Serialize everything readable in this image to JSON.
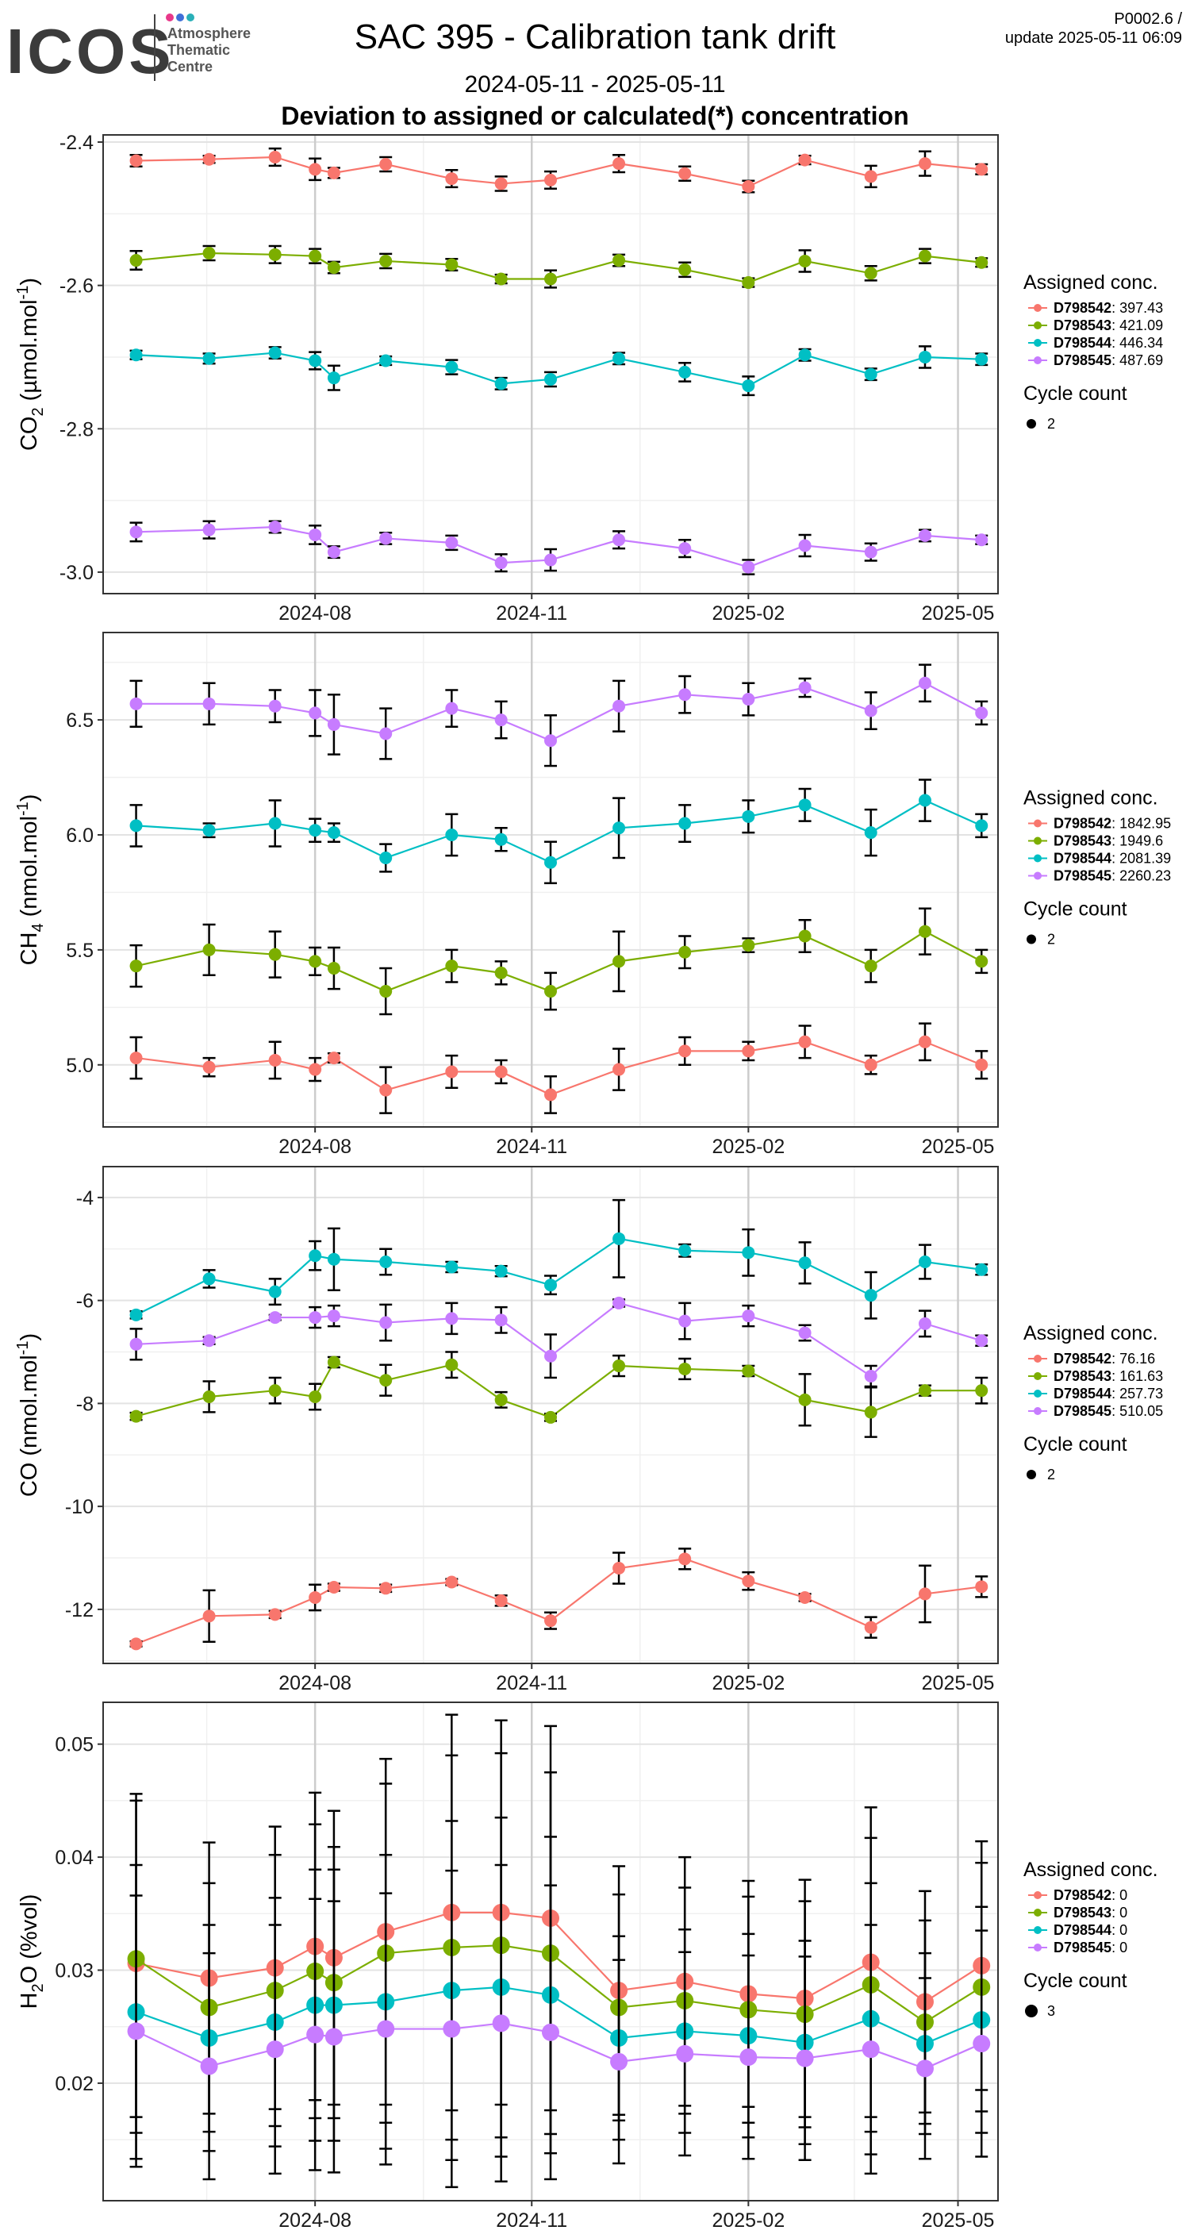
{
  "header": {
    "logo_text": "ICOS",
    "logo_sub": [
      "Atmosphere",
      "Thematic",
      "Centre"
    ],
    "title": "SAC 395 - Calibration tank drift",
    "period": "2024-05-11 - 2025-05-11",
    "subtitle": "Deviation to assigned or calculated(*) concentration",
    "meta_line1": "P0002.6 /",
    "meta_line2": "update  2025-05-11 06:09"
  },
  "colors": {
    "D798542": "#F8766D",
    "D798543": "#7CAE00",
    "D798544": "#00BFC4",
    "D798545": "#C77CFF"
  },
  "chart_data": [
    {
      "type": "line",
      "ylabel": "CO2 (µmol.mol-1)",
      "x_ticks": [
        "2024-08",
        "2024-11",
        "2025-02",
        "2025-05"
      ],
      "yticks": [
        -2.4,
        -2.6,
        -2.8,
        -3.0
      ],
      "ylim": [
        -3.03,
        -2.39
      ],
      "x": [
        "2024-05-17",
        "2024-06-17",
        "2024-07-15",
        "2024-08-01",
        "2024-08-09",
        "2024-08-31",
        "2024-09-28",
        "2024-10-19",
        "2024-11-09",
        "2024-12-08",
        "2025-01-05",
        "2025-02-01",
        "2025-02-25",
        "2025-03-25",
        "2025-04-17",
        "2025-05-11"
      ],
      "series": [
        {
          "name": "D798542",
          "assigned": "397.43",
          "values": [
            -2.426,
            -2.424,
            -2.421,
            -2.438,
            -2.443,
            -2.431,
            -2.451,
            -2.458,
            -2.453,
            -2.43,
            -2.444,
            -2.462,
            -2.425,
            -2.448,
            -2.43,
            -2.438
          ],
          "err": [
            0.008,
            0.005,
            0.012,
            0.015,
            0.007,
            0.01,
            0.012,
            0.01,
            0.012,
            0.012,
            0.01,
            0.008,
            0.006,
            0.015,
            0.017,
            0.007
          ]
        },
        {
          "name": "D798543",
          "assigned": "421.09",
          "values": [
            -2.565,
            -2.555,
            -2.557,
            -2.559,
            -2.575,
            -2.566,
            -2.571,
            -2.591,
            -2.591,
            -2.565,
            -2.578,
            -2.596,
            -2.566,
            -2.583,
            -2.559,
            -2.568
          ],
          "err": [
            0.013,
            0.01,
            0.012,
            0.01,
            0.008,
            0.01,
            0.008,
            0.006,
            0.012,
            0.008,
            0.01,
            0.006,
            0.015,
            0.01,
            0.01,
            0.006
          ]
        },
        {
          "name": "D798544",
          "assigned": "446.34",
          "values": [
            -2.697,
            -2.702,
            -2.694,
            -2.705,
            -2.729,
            -2.705,
            -2.714,
            -2.737,
            -2.731,
            -2.702,
            -2.721,
            -2.74,
            -2.697,
            -2.724,
            -2.7,
            -2.703
          ],
          "err": [
            0.006,
            0.007,
            0.008,
            0.012,
            0.017,
            0.006,
            0.01,
            0.008,
            0.01,
            0.008,
            0.013,
            0.013,
            0.008,
            0.008,
            0.015,
            0.008
          ]
        },
        {
          "name": "D798545",
          "assigned": "487.69",
          "values": [
            -2.944,
            -2.941,
            -2.937,
            -2.948,
            -2.972,
            -2.953,
            -2.959,
            -2.987,
            -2.983,
            -2.955,
            -2.967,
            -2.993,
            -2.963,
            -2.972,
            -2.949,
            -2.955
          ],
          "err": [
            0.013,
            0.012,
            0.008,
            0.013,
            0.008,
            0.008,
            0.01,
            0.012,
            0.015,
            0.012,
            0.012,
            0.01,
            0.015,
            0.012,
            0.008,
            0.006
          ]
        }
      ],
      "legend": {
        "title": "Assigned conc.",
        "size_title": "Cycle count",
        "size_value": "2"
      }
    },
    {
      "type": "line",
      "ylabel": "CH4 (nmol.mol-1)",
      "x_ticks": [
        "2024-08",
        "2024-11",
        "2025-02",
        "2025-05"
      ],
      "yticks": [
        6.5,
        6.0,
        5.5,
        5.0
      ],
      "ylim": [
        4.73,
        6.88
      ],
      "x": [
        "2024-05-17",
        "2024-06-17",
        "2024-07-15",
        "2024-08-01",
        "2024-08-09",
        "2024-08-31",
        "2024-09-28",
        "2024-10-19",
        "2024-11-09",
        "2024-12-08",
        "2025-01-05",
        "2025-02-01",
        "2025-02-25",
        "2025-03-25",
        "2025-04-17",
        "2025-05-11"
      ],
      "series": [
        {
          "name": "D798542",
          "assigned": "1842.95",
          "values": [
            5.03,
            4.99,
            5.02,
            4.98,
            5.03,
            4.89,
            4.97,
            4.97,
            4.87,
            4.98,
            5.06,
            5.06,
            5.1,
            5.0,
            5.1,
            5.0
          ],
          "err": [
            0.09,
            0.04,
            0.08,
            0.05,
            0.02,
            0.1,
            0.07,
            0.05,
            0.08,
            0.09,
            0.06,
            0.04,
            0.07,
            0.04,
            0.08,
            0.06
          ]
        },
        {
          "name": "D798543",
          "assigned": "1949.6",
          "values": [
            5.43,
            5.5,
            5.48,
            5.45,
            5.42,
            5.32,
            5.43,
            5.4,
            5.32,
            5.45,
            5.49,
            5.52,
            5.56,
            5.43,
            5.58,
            5.45
          ],
          "err": [
            0.09,
            0.11,
            0.1,
            0.06,
            0.09,
            0.1,
            0.07,
            0.05,
            0.08,
            0.13,
            0.07,
            0.03,
            0.07,
            0.07,
            0.1,
            0.05
          ]
        },
        {
          "name": "D798544",
          "assigned": "2081.39",
          "values": [
            6.04,
            6.02,
            6.05,
            6.02,
            6.01,
            5.9,
            6.0,
            5.98,
            5.88,
            6.03,
            6.05,
            6.08,
            6.13,
            6.01,
            6.15,
            6.04
          ],
          "err": [
            0.09,
            0.03,
            0.1,
            0.05,
            0.04,
            0.06,
            0.09,
            0.05,
            0.09,
            0.13,
            0.08,
            0.07,
            0.07,
            0.1,
            0.09,
            0.05
          ]
        },
        {
          "name": "D798545",
          "assigned": "2260.23",
          "values": [
            6.57,
            6.57,
            6.56,
            6.53,
            6.48,
            6.44,
            6.55,
            6.5,
            6.41,
            6.56,
            6.61,
            6.59,
            6.64,
            6.54,
            6.66,
            6.53
          ],
          "err": [
            0.1,
            0.09,
            0.07,
            0.1,
            0.13,
            0.11,
            0.08,
            0.08,
            0.11,
            0.11,
            0.08,
            0.07,
            0.04,
            0.08,
            0.08,
            0.05
          ]
        }
      ],
      "legend": {
        "title": "Assigned conc.",
        "size_title": "Cycle count",
        "size_value": "2"
      }
    },
    {
      "type": "line",
      "ylabel": "CO (nmol.mol-1)",
      "x_ticks": [
        "2024-08",
        "2024-11",
        "2025-02",
        "2025-05"
      ],
      "yticks": [
        -4,
        -6,
        -8,
        -10,
        -12
      ],
      "ylim": [
        -13.05,
        -3.4
      ],
      "x": [
        "2024-05-17",
        "2024-06-17",
        "2024-07-15",
        "2024-08-01",
        "2024-08-09",
        "2024-08-31",
        "2024-09-28",
        "2024-10-19",
        "2024-11-09",
        "2024-12-08",
        "2025-01-05",
        "2025-02-01",
        "2025-02-25",
        "2025-03-25",
        "2025-04-17",
        "2025-05-11"
      ],
      "series": [
        {
          "name": "D798542",
          "assigned": "76.16",
          "values": [
            -12.67,
            -12.13,
            -12.1,
            -11.77,
            -11.57,
            -11.59,
            -11.47,
            -11.83,
            -12.22,
            -11.2,
            -11.02,
            -11.45,
            -11.77,
            -12.35,
            -11.7,
            -11.56
          ],
          "err": [
            0.05,
            0.5,
            0.07,
            0.25,
            0.07,
            0.07,
            0.06,
            0.1,
            0.16,
            0.3,
            0.2,
            0.17,
            0.07,
            0.2,
            0.55,
            0.2
          ]
        },
        {
          "name": "D798543",
          "assigned": "161.63",
          "values": [
            -8.25,
            -7.87,
            -7.75,
            -7.87,
            -7.2,
            -7.55,
            -7.25,
            -7.93,
            -8.27,
            -7.27,
            -7.33,
            -7.37,
            -7.93,
            -8.17,
            -7.75,
            -7.75
          ],
          "err": [
            0.07,
            0.3,
            0.25,
            0.25,
            0.1,
            0.3,
            0.25,
            0.15,
            0.07,
            0.2,
            0.2,
            0.1,
            0.5,
            0.48,
            0.1,
            0.25
          ]
        },
        {
          "name": "D798544",
          "assigned": "257.73",
          "values": [
            -6.28,
            -5.58,
            -5.83,
            -5.13,
            -5.2,
            -5.25,
            -5.35,
            -5.43,
            -5.7,
            -4.8,
            -5.03,
            -5.07,
            -5.27,
            -5.9,
            -5.25,
            -5.4
          ],
          "err": [
            0.07,
            0.17,
            0.25,
            0.28,
            0.6,
            0.25,
            0.1,
            0.1,
            0.18,
            0.75,
            0.12,
            0.45,
            0.4,
            0.45,
            0.33,
            0.1
          ]
        },
        {
          "name": "D798545",
          "assigned": "510.05",
          "values": [
            -6.85,
            -6.78,
            -6.33,
            -6.33,
            -6.3,
            -6.43,
            -6.35,
            -6.38,
            -7.08,
            -6.05,
            -6.4,
            -6.3,
            -6.63,
            -7.47,
            -6.45,
            -6.78
          ],
          "err": [
            0.3,
            0.07,
            0.05,
            0.2,
            0.2,
            0.35,
            0.3,
            0.25,
            0.42,
            0.07,
            0.35,
            0.2,
            0.15,
            0.2,
            0.25,
            0.1
          ]
        }
      ],
      "legend": {
        "title": "Assigned conc.",
        "size_title": "Cycle count",
        "size_value": "2"
      }
    },
    {
      "type": "line",
      "ylabel": "H2O (%vol)",
      "x_ticks": [
        "2024-08",
        "2024-11",
        "2025-02",
        "2025-05"
      ],
      "yticks": [
        0.05,
        0.04,
        0.03,
        0.02
      ],
      "ylim": [
        0.0096,
        0.0537
      ],
      "x": [
        "2024-05-17",
        "2024-06-17",
        "2024-07-15",
        "2024-08-01",
        "2024-08-09",
        "2024-08-31",
        "2024-09-28",
        "2024-10-19",
        "2024-11-09",
        "2024-12-08",
        "2025-01-05",
        "2025-02-01",
        "2025-02-25",
        "2025-03-25",
        "2025-04-17",
        "2025-05-11"
      ],
      "series": [
        {
          "name": "D798542",
          "assigned": "0",
          "values": [
            0.0306,
            0.0293,
            0.0302,
            0.0321,
            0.0311,
            0.0334,
            0.0351,
            0.0351,
            0.0346,
            0.0282,
            0.029,
            0.0279,
            0.0275,
            0.0307,
            0.0272,
            0.0304
          ],
          "err": [
            0.015,
            0.012,
            0.0125,
            0.0136,
            0.013,
            0.0153,
            0.0175,
            0.017,
            0.017,
            0.011,
            0.011,
            0.01,
            0.0105,
            0.0137,
            0.0098,
            0.011
          ]
        },
        {
          "name": "D798543",
          "assigned": "0",
          "values": [
            0.031,
            0.0267,
            0.0282,
            0.0299,
            0.0289,
            0.0315,
            0.032,
            0.0322,
            0.0315,
            0.0267,
            0.0273,
            0.0265,
            0.0261,
            0.0287,
            0.0254,
            0.0285
          ],
          "err": [
            0.014,
            0.011,
            0.012,
            0.013,
            0.012,
            0.015,
            0.017,
            0.017,
            0.016,
            0.01,
            0.01,
            0.01,
            0.01,
            0.013,
            0.009,
            0.011
          ]
        },
        {
          "name": "D798544",
          "assigned": "0",
          "values": [
            0.0263,
            0.024,
            0.0254,
            0.0269,
            0.0269,
            0.0272,
            0.0282,
            0.0285,
            0.0278,
            0.024,
            0.0246,
            0.0242,
            0.0236,
            0.0257,
            0.0235,
            0.0256
          ],
          "err": [
            0.013,
            0.01,
            0.011,
            0.012,
            0.012,
            0.013,
            0.015,
            0.015,
            0.014,
            0.009,
            0.009,
            0.009,
            0.009,
            0.012,
            0.008,
            0.01
          ]
        },
        {
          "name": "D798545",
          "assigned": "0",
          "values": [
            0.0246,
            0.0215,
            0.023,
            0.0243,
            0.0241,
            0.0248,
            0.0248,
            0.0253,
            0.0245,
            0.0219,
            0.0226,
            0.0223,
            0.0222,
            0.023,
            0.0213,
            0.0235
          ],
          "err": [
            0.012,
            0.01,
            0.011,
            0.012,
            0.012,
            0.012,
            0.014,
            0.014,
            0.013,
            0.009,
            0.009,
            0.009,
            0.009,
            0.011,
            0.008,
            0.01
          ]
        }
      ],
      "legend": {
        "title": "Assigned conc.",
        "size_title": "Cycle count",
        "size_value": "3"
      }
    }
  ]
}
